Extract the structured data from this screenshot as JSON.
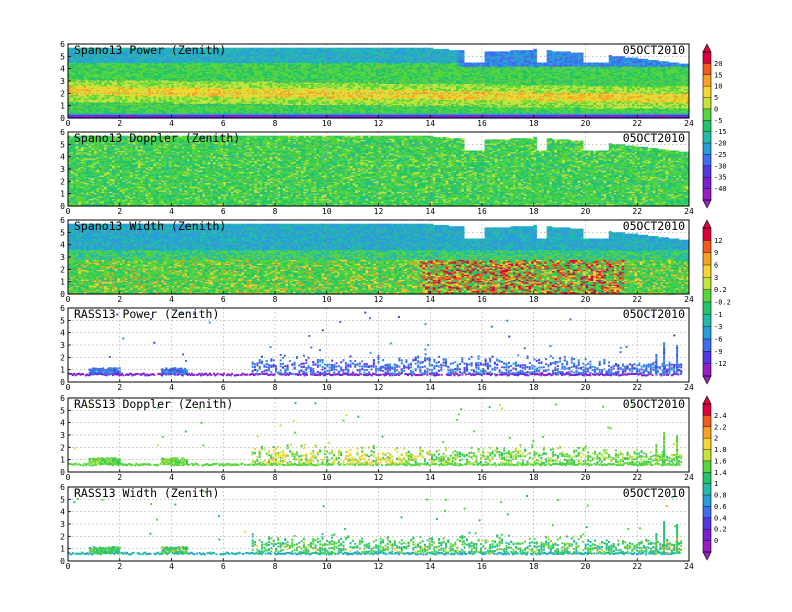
{
  "chart_data": [
    {
      "type": "heatmap",
      "title": "Spano13 Power (Zenith)",
      "date": "05OCT2010",
      "xlim": [
        0,
        24
      ],
      "ylim": [
        0,
        6
      ],
      "x_ticks": [
        "0",
        "2",
        "4",
        "6",
        "8",
        "10",
        "12",
        "14",
        "16",
        "18",
        "20",
        "22",
        "24"
      ],
      "y_ticks": [
        "0",
        "1",
        "2",
        "3",
        "4",
        "5",
        "6"
      ],
      "grid": true,
      "colorbar": "power",
      "pattern": "wind-power",
      "data_top_km": [
        [
          0,
          5.6
        ],
        [
          14,
          5.6
        ],
        [
          16,
          5.3
        ],
        [
          18,
          5.5
        ],
        [
          20,
          5.2
        ],
        [
          22,
          4.8
        ],
        [
          24,
          4.3
        ]
      ],
      "description_blank_blocks": [
        [
          15.2,
          16.0,
          4.5,
          6
        ],
        [
          18.0,
          18.4,
          4.5,
          6
        ],
        [
          19.9,
          20.9,
          4.5,
          6
        ]
      ]
    },
    {
      "type": "heatmap",
      "title": "Spano13 Doppler (Zenith)",
      "date": "05OCT2010",
      "xlim": [
        0,
        24
      ],
      "ylim": [
        0,
        6
      ],
      "x_ticks": [
        "0",
        "2",
        "4",
        "6",
        "8",
        "10",
        "12",
        "14",
        "16",
        "18",
        "20",
        "22",
        "24"
      ],
      "y_ticks": [
        "0",
        "1",
        "2",
        "3",
        "4",
        "5",
        "6"
      ],
      "grid": true,
      "colorbar": "power",
      "pattern": "wind-doppler",
      "data_top_km": [
        [
          0,
          5.6
        ],
        [
          14,
          5.6
        ],
        [
          16,
          5.3
        ],
        [
          18,
          5.5
        ],
        [
          20,
          5.2
        ],
        [
          22,
          4.8
        ],
        [
          24,
          4.3
        ]
      ],
      "description_blank_blocks": [
        [
          15.2,
          16.0,
          4.5,
          6
        ],
        [
          18.0,
          18.4,
          4.5,
          6
        ],
        [
          19.9,
          20.9,
          4.5,
          6
        ]
      ]
    },
    {
      "type": "heatmap",
      "title": "Spano13 Width (Zenith)",
      "date": "05OCT2010",
      "xlim": [
        0,
        24
      ],
      "ylim": [
        0,
        6
      ],
      "x_ticks": [
        "0",
        "2",
        "4",
        "6",
        "8",
        "10",
        "12",
        "14",
        "16",
        "18",
        "20",
        "22",
        "24"
      ],
      "y_ticks": [
        "0",
        "1",
        "2",
        "3",
        "4",
        "5",
        "6"
      ],
      "grid": true,
      "colorbar": "width",
      "pattern": "wind-width",
      "data_top_km": [
        [
          0,
          5.6
        ],
        [
          14,
          5.6
        ],
        [
          16,
          5.3
        ],
        [
          18,
          5.5
        ],
        [
          20,
          5.2
        ],
        [
          22,
          4.8
        ],
        [
          24,
          4.3
        ]
      ],
      "description_blank_blocks": [
        [
          15.2,
          16.0,
          4.5,
          6
        ],
        [
          18.0,
          18.4,
          4.5,
          6
        ],
        [
          19.9,
          20.9,
          4.5,
          6
        ]
      ]
    },
    {
      "type": "scatter",
      "title": "RASS13 Power (Zenith)",
      "date": "05OCT2010",
      "xlim": [
        0,
        24
      ],
      "ylim": [
        0,
        6
      ],
      "x_ticks": [
        "0",
        "2",
        "4",
        "6",
        "8",
        "10",
        "12",
        "14",
        "16",
        "18",
        "20",
        "22",
        "24"
      ],
      "y_ticks": [
        "0",
        "1",
        "2",
        "3",
        "4",
        "5",
        "6"
      ],
      "grid": true,
      "colorbar": "width",
      "pattern": "rass-power"
    },
    {
      "type": "scatter",
      "title": "RASS13 Doppler (Zenith)",
      "date": "05OCT2010",
      "xlim": [
        0,
        24
      ],
      "ylim": [
        0,
        6
      ],
      "x_ticks": [
        "0",
        "2",
        "4",
        "6",
        "8",
        "10",
        "12",
        "14",
        "16",
        "18",
        "20",
        "22",
        "24"
      ],
      "y_ticks": [
        "0",
        "1",
        "2",
        "3",
        "4",
        "5",
        "6"
      ],
      "grid": true,
      "colorbar": "doppler",
      "pattern": "rass-doppler"
    },
    {
      "type": "scatter",
      "title": "RASS13 Width (Zenith)",
      "date": "05OCT2010",
      "xlim": [
        0,
        24
      ],
      "ylim": [
        0,
        6
      ],
      "x_ticks": [
        "0",
        "2",
        "4",
        "6",
        "8",
        "10",
        "12",
        "14",
        "16",
        "18",
        "20",
        "22",
        "24"
      ],
      "y_ticks": [
        "0",
        "1",
        "2",
        "3",
        "4",
        "5",
        "6"
      ],
      "grid": true,
      "colorbar": "doppler",
      "pattern": "rass-width"
    }
  ],
  "colorbars": {
    "power": {
      "labels": [
        "20",
        "15",
        "10",
        "5",
        "0",
        "-5",
        "-15",
        "-20",
        "-25",
        "-30",
        "-35",
        "-40"
      ],
      "colors": [
        "#e0003a",
        "#f45a1e",
        "#f9a125",
        "#f5d531",
        "#c3e43c",
        "#56d63d",
        "#23c56a",
        "#23bcaa",
        "#2a9ed8",
        "#3f6ef0",
        "#5438e6",
        "#7a20d4",
        "#9a1ec6"
      ]
    },
    "width": {
      "labels": [
        "12",
        "9",
        "6",
        "3",
        "0.2",
        "-0.2",
        "-1",
        "-3",
        "-6",
        "-9",
        "-12"
      ],
      "colors": [
        "#e0003a",
        "#f45a1e",
        "#f9a125",
        "#f5d531",
        "#c3e43c",
        "#56d63d",
        "#23c56a",
        "#23bcaa",
        "#2a9ed8",
        "#3f6ef0",
        "#5438e6",
        "#9a1ec6"
      ]
    },
    "doppler": {
      "labels": [
        "2.4",
        "2.2",
        "2",
        "1.8",
        "1.6",
        "1.4",
        "1",
        "0.8",
        "0.6",
        "0.4",
        "0.2",
        "0"
      ],
      "colors": [
        "#e0003a",
        "#f45a1e",
        "#f9a125",
        "#f5d531",
        "#c3e43c",
        "#56d63d",
        "#23c56a",
        "#23bcaa",
        "#2a9ed8",
        "#3f6ef0",
        "#5438e6",
        "#7a20d4",
        "#9a1ec6"
      ]
    }
  }
}
